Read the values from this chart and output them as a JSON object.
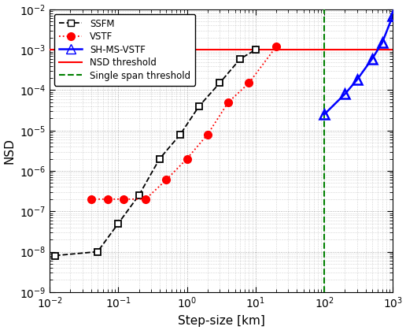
{
  "title": "",
  "xlabel": "Step-size [km]",
  "ylabel": "NSD",
  "xlim": [
    0.01,
    1000
  ],
  "ylim": [
    1e-09,
    0.01
  ],
  "nsd_threshold": 0.001,
  "single_span_threshold": 100,
  "ssfm_x": [
    0.012,
    0.05,
    0.1,
    0.2,
    0.4,
    0.8,
    1.5,
    3.0,
    6.0,
    10.0
  ],
  "ssfm_y": [
    8e-09,
    1e-08,
    5e-08,
    2.5e-07,
    2e-06,
    8e-06,
    4e-05,
    0.00015,
    0.0006,
    0.001
  ],
  "vstf_x": [
    0.04,
    0.07,
    0.12,
    0.25,
    0.5,
    1.0,
    2.0,
    4.0,
    8.0,
    20.0
  ],
  "vstf_y": [
    2e-07,
    2e-07,
    2e-07,
    2e-07,
    6e-07,
    2e-06,
    8e-06,
    5e-05,
    0.00015,
    0.0012
  ],
  "shms_x": [
    100,
    200,
    300,
    500,
    700,
    1000
  ],
  "shms_y": [
    2.5e-05,
    8e-05,
    0.00018,
    0.0006,
    0.0015,
    0.007
  ],
  "ssfm_color": "#000000",
  "vstf_color": "#ff0000",
  "shms_color": "#0000ff",
  "nsd_threshold_color": "#ff0000",
  "single_span_color": "#008000",
  "background_color": "#ffffff",
  "grid_dot_color": "#999999"
}
